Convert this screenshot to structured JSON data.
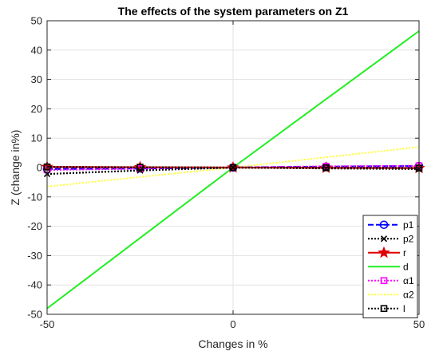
{
  "chart_data": {
    "type": "line",
    "title": "The effects of the system parameters on Z1",
    "xlabel": "Changes in %",
    "ylabel": "Z (change in%)",
    "xlim": [
      -50,
      50
    ],
    "ylim": [
      -50,
      50
    ],
    "xticks": [
      -50,
      0,
      50
    ],
    "yticks": [
      -50,
      -40,
      -30,
      -20,
      -10,
      0,
      10,
      20,
      30,
      40,
      50
    ],
    "grid": true,
    "legend_position": "bottom-right",
    "x": [
      -50,
      -25,
      0,
      25,
      50
    ],
    "series": [
      {
        "name": "p1",
        "color": "#0000ff",
        "line_style": "dashed",
        "marker": "circle-line",
        "values": [
          -0.5,
          -0.3,
          0,
          0.3,
          0.5
        ]
      },
      {
        "name": "p2",
        "color": "#000000",
        "line_style": "dotted",
        "marker": "x",
        "values": [
          -2.2,
          -1.0,
          0,
          -0.3,
          -0.5
        ]
      },
      {
        "name": "r",
        "color": "#e00000",
        "line_style": "solid",
        "marker": "star",
        "values": [
          0.2,
          0.1,
          0,
          -0.1,
          -0.2
        ]
      },
      {
        "name": "d",
        "color": "#22ee22",
        "line_style": "solid",
        "marker": "none",
        "values": [
          -48,
          -24,
          0,
          23.3,
          46.5
        ]
      },
      {
        "name": "α1",
        "color": "#ff00ff",
        "line_style": "dotted",
        "marker": "square",
        "values": [
          -0.8,
          -0.4,
          0,
          0.4,
          0.6
        ]
      },
      {
        "name": "α2",
        "color": "#ffff33",
        "line_style": "dotted",
        "marker": "none",
        "values": [
          -6.5,
          -3.2,
          0,
          3.5,
          7.0
        ]
      },
      {
        "name": "l",
        "color": "#000000",
        "line_style": "dotted",
        "marker": "square",
        "values": [
          0.2,
          0.1,
          0,
          -0.1,
          -0.2
        ]
      }
    ]
  }
}
